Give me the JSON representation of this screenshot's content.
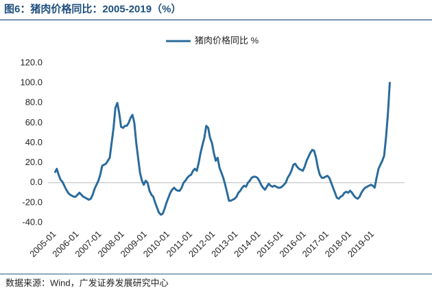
{
  "chart_data": {
    "type": "line",
    "title": "图6：猪肉价格同比：2005-2019（%）",
    "source": "数据来源：Wind，广发证券发展研究中心",
    "categories": [
      "2005-01",
      null,
      null,
      null,
      null,
      null,
      null,
      null,
      null,
      null,
      null,
      null,
      "2006-01",
      null,
      null,
      null,
      null,
      null,
      null,
      null,
      null,
      null,
      null,
      null,
      "2007-01",
      null,
      null,
      null,
      null,
      null,
      null,
      null,
      null,
      null,
      null,
      null,
      "2008-01",
      null,
      null,
      null,
      null,
      null,
      null,
      null,
      null,
      null,
      null,
      null,
      "2009-01",
      null,
      null,
      null,
      null,
      null,
      null,
      null,
      null,
      null,
      null,
      null,
      "2010-01",
      null,
      null,
      null,
      null,
      null,
      null,
      null,
      null,
      null,
      null,
      null,
      "2011-01",
      null,
      null,
      null,
      null,
      null,
      null,
      null,
      null,
      null,
      null,
      null,
      "2012-01",
      null,
      null,
      null,
      null,
      null,
      null,
      null,
      null,
      null,
      null,
      null,
      "2013-01",
      null,
      null,
      null,
      null,
      null,
      null,
      null,
      null,
      null,
      null,
      null,
      "2014-01",
      null,
      null,
      null,
      null,
      null,
      null,
      null,
      null,
      null,
      null,
      null,
      "2015-01",
      null,
      null,
      null,
      null,
      null,
      null,
      null,
      null,
      null,
      null,
      null,
      "2016-01",
      null,
      null,
      null,
      null,
      null,
      null,
      null,
      null,
      null,
      null,
      null,
      "2017-01",
      null,
      null,
      null,
      null,
      null,
      null,
      null,
      null,
      null,
      null,
      null,
      "2018-01",
      null,
      null,
      null,
      null,
      null,
      null,
      null,
      null,
      null,
      null,
      null,
      "2019-01",
      null,
      null,
      null,
      null,
      null,
      null,
      null,
      null,
      null
    ],
    "series": [
      {
        "name": "猪肉价格同比 %",
        "color": "#2a6b9c",
        "values": [
          10,
          14,
          8,
          3,
          1,
          -3,
          -7,
          -10,
          -12,
          -13,
          -14,
          -14,
          -12,
          -10,
          -12,
          -14,
          -15,
          -16,
          -17,
          -16,
          -12,
          -6,
          -2,
          2,
          8,
          17,
          18,
          19,
          22,
          25,
          40,
          55,
          75,
          80,
          70,
          56,
          55,
          57,
          57,
          60,
          65,
          68,
          60,
          40,
          25,
          10,
          2,
          -2,
          2,
          0,
          -8,
          -12,
          -14,
          -20,
          -25,
          -30,
          -32,
          -31,
          -26,
          -20,
          -15,
          -10,
          -7,
          -5,
          -7,
          -8,
          -8,
          -5,
          0,
          2,
          5,
          7,
          8,
          12,
          14,
          12,
          20,
          30,
          38,
          45,
          57,
          55,
          45,
          40,
          30,
          22,
          25,
          15,
          10,
          5,
          -2,
          -10,
          -18,
          -18,
          -17,
          -16,
          -14,
          -10,
          -8,
          -5,
          -3,
          -4,
          0,
          2,
          5,
          6,
          6,
          5,
          2,
          -2,
          -5,
          -7,
          -4,
          -1,
          -3,
          -4,
          -3,
          -4,
          -5,
          -5,
          -4,
          -2,
          0,
          5,
          8,
          12,
          18,
          19,
          16,
          14,
          13,
          12,
          16,
          22,
          26,
          30,
          33,
          32,
          25,
          15,
          8,
          5,
          5,
          6,
          7,
          5,
          0,
          -5,
          -10,
          -15,
          -16,
          -14,
          -13,
          -10,
          -9,
          -10,
          -8,
          -10,
          -13,
          -15,
          -16,
          -14,
          -10,
          -7,
          -5,
          -4,
          -3,
          -2,
          -3,
          -5,
          5,
          14,
          18,
          22,
          27,
          46,
          70,
          101
        ]
      }
    ],
    "ylim": [
      -40,
      120
    ],
    "yticks": [
      {
        "value": -40,
        "label": "-40.0"
      },
      {
        "value": -20,
        "label": "-20.0"
      },
      {
        "value": 0,
        "label": "0.0"
      },
      {
        "value": 20,
        "label": "20.0"
      },
      {
        "value": 40,
        "label": "40.0"
      },
      {
        "value": 60,
        "label": "60.0"
      },
      {
        "value": 80,
        "label": "80.0"
      },
      {
        "value": 100,
        "label": "100.0"
      },
      {
        "value": 120,
        "label": "120.0"
      }
    ],
    "grid": false,
    "legend": "top"
  }
}
